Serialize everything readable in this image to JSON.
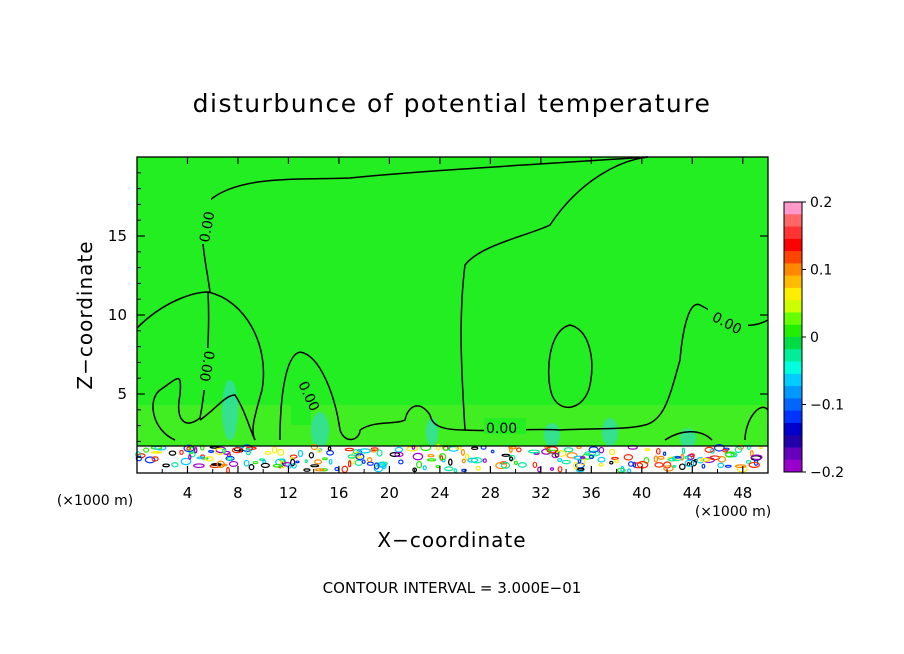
{
  "chart_data": {
    "type": "heatmap",
    "title": "disturbunce of potential temperature",
    "xlabel": "X−coordinate",
    "ylabel": "Z−coordinate",
    "x_unit_left": "(×1000 m)",
    "x_unit_right": "(×1000 m)",
    "x_ticks": [
      "4",
      "8",
      "12",
      "16",
      "20",
      "24",
      "28",
      "32",
      "36",
      "40",
      "44",
      "48"
    ],
    "y_ticks": [
      "5",
      "10",
      "15"
    ],
    "xlim": [
      0,
      50
    ],
    "ylim": [
      0,
      20
    ],
    "contour_labels": [
      "0.00",
      "0.00",
      "0.00",
      "0.00",
      "0.00"
    ],
    "contour_interval_text": "CONTOUR INTERVAL = 3.000E−01",
    "colorbar": {
      "min": -0.2,
      "max": 0.2,
      "tick_labels": [
        "0.2",
        "0.1",
        "0",
        "−0.1",
        "−0.2"
      ],
      "colors": [
        "#ff99cc",
        "#ff6666",
        "#ff3333",
        "#ff0000",
        "#ff4400",
        "#ff8800",
        "#ffbb00",
        "#ffee00",
        "#ccff00",
        "#66ff00",
        "#22ee00",
        "#00dd44",
        "#00ee99",
        "#00ffdd",
        "#00ccff",
        "#0099ff",
        "#0066ff",
        "#0033ff",
        "#0000cc",
        "#2200aa",
        "#6600bb",
        "#9900cc"
      ]
    },
    "background_color": "#22ee22"
  }
}
